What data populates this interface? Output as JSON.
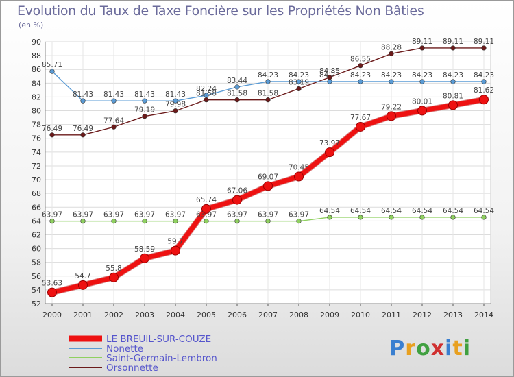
{
  "header": {
    "title": "Evolution du Taux de Taxe Foncière sur les Propriétés Non Bâties",
    "unit": "(en %)"
  },
  "logo": {
    "letters": [
      "P",
      "r",
      "o",
      "x",
      "i",
      "t",
      "i"
    ],
    "colors": [
      "#3a7fd0",
      "#e8a020",
      "#40a040",
      "#d03030",
      "#3a7fd0",
      "#e8a020",
      "#40a040"
    ]
  },
  "chart_data": {
    "type": "line",
    "title": "Evolution du Taux de Taxe Foncière sur les Propriétés Non Bâties",
    "ylabel": "(en %)",
    "xlabel": "",
    "ylim": [
      52,
      90
    ],
    "yticks": [
      52,
      54,
      56,
      58,
      60,
      62,
      64,
      66,
      68,
      70,
      72,
      74,
      76,
      78,
      80,
      82,
      84,
      86,
      88,
      90
    ],
    "categories": [
      "2000",
      "2001",
      "2002",
      "2003",
      "2004",
      "2005",
      "2006",
      "2007",
      "2008",
      "2009",
      "2010",
      "2011",
      "2012",
      "2013",
      "2014"
    ],
    "grid": true,
    "legend_position": "bottom-left",
    "series": [
      {
        "name": "Orsonnette",
        "color": "#6b1a1a",
        "values": [
          76.49,
          76.49,
          77.64,
          79.19,
          79.98,
          81.58,
          81.58,
          81.58,
          83.19,
          84.85,
          86.55,
          88.28,
          89.11,
          89.11,
          89.11
        ],
        "labels": [
          "76.49",
          "76.49",
          "77.64",
          "79.19",
          "79.98",
          "81.58",
          "81.58",
          "81.58",
          "83.19",
          "84.85",
          "86.55",
          "88.28",
          "89.11",
          "89.11",
          "89.11"
        ]
      },
      {
        "name": "Nonette",
        "color": "#5a9bd5",
        "values": [
          85.71,
          81.43,
          81.43,
          81.43,
          81.43,
          82.24,
          83.44,
          84.23,
          84.23,
          84.23,
          84.23,
          84.23,
          84.23,
          84.23,
          84.23
        ],
        "labels": [
          "85.71",
          "81.43",
          "81.43",
          "81.43",
          "81.43",
          "82.24",
          "83.44",
          "84.23",
          "84.23",
          "84.23",
          "84.23",
          "84.23",
          "84.23",
          "84.23",
          "84.23"
        ]
      },
      {
        "name": "Saint-Germain-Lembron",
        "color": "#8fd060",
        "values": [
          63.97,
          63.97,
          63.97,
          63.97,
          63.97,
          63.97,
          63.97,
          63.97,
          63.97,
          64.54,
          64.54,
          64.54,
          64.54,
          64.54,
          64.54
        ],
        "labels": [
          "63.97",
          "63.97",
          "63.97",
          "63.97",
          "63.97",
          "63.97",
          "63.97",
          "63.97",
          "63.97",
          "64.54",
          "64.54",
          "64.54",
          "64.54",
          "64.54",
          "64.54"
        ]
      },
      {
        "name": "LE BREUIL-SUR-COUZE",
        "color": "#ee1111",
        "values": [
          53.63,
          54.7,
          55.8,
          58.59,
          59.7,
          65.74,
          67.06,
          69.07,
          70.45,
          73.97,
          77.67,
          79.22,
          80.01,
          80.81,
          81.62
        ],
        "labels": [
          "53.63",
          "54.7",
          "55.8",
          "58.59",
          "59.7",
          "65.74",
          "67.06",
          "69.07",
          "70.45",
          "73.97",
          "77.67",
          "79.22",
          "80.01",
          "80.81",
          "81.62"
        ]
      }
    ],
    "legend": [
      {
        "name": "LE BREUIL-SUR-COUZE",
        "color": "#ee1111",
        "text_color": "#5555cc"
      },
      {
        "name": "Nonette",
        "color": "#5a9bd5",
        "text_color": "#5555cc"
      },
      {
        "name": "Saint-Germain-Lembron",
        "color": "#8fd060",
        "text_color": "#5555cc"
      },
      {
        "name": "Orsonnette",
        "color": "#6b1a1a",
        "text_color": "#5555cc"
      }
    ]
  }
}
